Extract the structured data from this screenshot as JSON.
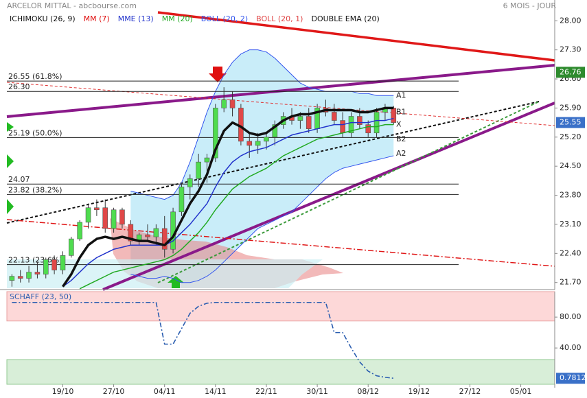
{
  "chart_data": [
    {
      "type": "candlestick",
      "title": "ARCELOR MITTAL - abcbourse.com",
      "period": "6 MOIS - JOUR",
      "xlim": [
        -1,
        64
      ],
      "ylim": [
        21.53,
        28.5
      ],
      "yticks": [
        {
          "value": 28,
          "label": "28.00"
        },
        {
          "value": 27.3,
          "label": "27.30"
        },
        {
          "value": 26.6,
          "label": "26.60"
        },
        {
          "value": 25.9,
          "label": "25.90"
        },
        {
          "value": 25.2,
          "label": "25.20"
        },
        {
          "value": 24.5,
          "label": "24.50"
        },
        {
          "value": 23.8,
          "label": "23.80"
        },
        {
          "value": 23.1,
          "label": "23.10"
        },
        {
          "value": 22.4,
          "label": "22.40"
        },
        {
          "value": 21.7,
          "label": "21.70"
        }
      ],
      "open": [
        21.75,
        21.85,
        21.8,
        21.95,
        21.9,
        22.25,
        22.0,
        22.35,
        22.75,
        23.15,
        23.5,
        23.5,
        23.0,
        23.45,
        23.1,
        22.7,
        22.85,
        22.8,
        23.0,
        22.5,
        23.4,
        24.0,
        24.2,
        24.6,
        24.7,
        25.9,
        26.1,
        25.9,
        25.1,
        25.0,
        25.1,
        25.2,
        25.5,
        25.7,
        25.6,
        25.7,
        25.4,
        25.9,
        25.8,
        25.6,
        25.3,
        25.7,
        25.5,
        25.3,
        25.8,
        25.9
      ],
      "high": [
        21.9,
        22.0,
        22.1,
        22.2,
        22.3,
        22.35,
        22.45,
        22.8,
        23.2,
        23.6,
        23.7,
        23.7,
        23.5,
        23.5,
        23.2,
        22.9,
        23.1,
        23.1,
        23.3,
        23.5,
        24.1,
        24.3,
        24.8,
        24.8,
        26.0,
        26.4,
        26.3,
        26.0,
        25.3,
        25.3,
        25.3,
        25.6,
        25.8,
        25.9,
        25.8,
        25.9,
        26.0,
        26.1,
        26.0,
        25.8,
        25.8,
        25.9,
        25.6,
        25.9,
        26.0,
        25.95
      ],
      "low": [
        21.6,
        21.7,
        21.7,
        21.8,
        21.8,
        21.9,
        21.9,
        22.3,
        22.7,
        23.0,
        23.3,
        22.9,
        22.9,
        23.0,
        22.6,
        22.6,
        22.7,
        22.6,
        22.3,
        22.4,
        23.3,
        23.7,
        24.0,
        24.1,
        24.6,
        25.8,
        25.7,
        25.0,
        24.7,
        24.8,
        24.9,
        25.0,
        25.4,
        25.5,
        25.4,
        25.3,
        25.3,
        25.7,
        25.5,
        25.2,
        25.2,
        25.4,
        25.2,
        25.2,
        25.6,
        25.5
      ],
      "close": [
        21.85,
        21.8,
        21.95,
        21.9,
        22.25,
        22.0,
        22.35,
        22.75,
        23.15,
        23.5,
        23.45,
        23.0,
        23.45,
        23.1,
        22.7,
        22.85,
        22.8,
        23.0,
        22.5,
        23.4,
        24.0,
        24.2,
        24.6,
        24.7,
        25.9,
        26.1,
        25.9,
        25.1,
        25.0,
        25.1,
        25.2,
        25.5,
        25.7,
        25.6,
        25.7,
        25.4,
        25.9,
        25.8,
        25.6,
        25.3,
        25.7,
        25.5,
        25.3,
        25.8,
        25.9,
        25.55
      ],
      "up_color": "#4fdc4f",
      "down_color": "#e04848",
      "indicators": [
        {
          "name": "ICHIMOKU (26, 9)",
          "color": "#111111"
        },
        {
          "name": "MM (7)",
          "color": "#e01010"
        },
        {
          "name": "MME (13)",
          "color": "#2233cc"
        },
        {
          "name": "MM (20)",
          "color": "#22aa22"
        },
        {
          "name": "BOLL (20, 2)",
          "color": "#3355ee"
        },
        {
          "name": "BOLL (20, 1)",
          "color": "#e04444"
        },
        {
          "name": "DOUBLE EMA (20)",
          "color": "#111111"
        }
      ],
      "bands": {
        "indicator": 4,
        "fill": "#c9edf9",
        "upper": [
          null,
          null,
          null,
          null,
          null,
          null,
          null,
          null,
          null,
          null,
          null,
          null,
          null,
          null,
          23.9,
          23.85,
          23.8,
          23.75,
          23.7,
          23.8,
          24.1,
          24.6,
          25.2,
          25.8,
          26.3,
          26.7,
          27.0,
          27.2,
          27.3,
          27.3,
          27.25,
          27.1,
          26.9,
          26.7,
          26.5,
          26.4,
          26.35,
          26.3,
          26.3,
          26.3,
          26.3,
          26.25,
          26.25,
          26.2,
          26.2,
          26.2
        ],
        "lower": [
          null,
          null,
          null,
          null,
          null,
          null,
          null,
          null,
          null,
          null,
          null,
          null,
          null,
          null,
          21.9,
          21.85,
          21.8,
          21.8,
          21.85,
          21.8,
          21.7,
          21.7,
          21.75,
          21.85,
          22.0,
          22.2,
          22.4,
          22.6,
          22.8,
          23.0,
          23.1,
          23.2,
          23.3,
          23.4,
          23.6,
          23.8,
          24.0,
          24.2,
          24.35,
          24.45,
          24.5,
          24.55,
          24.6,
          24.65,
          24.7,
          24.75
        ]
      },
      "series": [
        {
          "indicator": 3,
          "width": 1.5,
          "values": [
            null,
            null,
            null,
            null,
            null,
            null,
            null,
            null,
            21.55,
            21.65,
            21.75,
            21.85,
            21.95,
            22.0,
            22.05,
            22.1,
            22.15,
            22.2,
            22.25,
            22.35,
            22.5,
            22.7,
            22.9,
            23.15,
            23.45,
            23.7,
            23.95,
            24.1,
            24.25,
            24.35,
            24.45,
            24.6,
            24.75,
            24.85,
            24.95,
            25.05,
            25.15,
            25.2,
            25.25,
            25.3,
            25.35,
            25.4,
            25.45,
            25.45,
            25.5,
            25.5
          ]
        },
        {
          "indicator": 2,
          "width": 1.5,
          "values": [
            null,
            null,
            null,
            null,
            null,
            null,
            21.6,
            21.75,
            21.95,
            22.15,
            22.3,
            22.4,
            22.5,
            22.55,
            22.6,
            22.6,
            22.6,
            22.6,
            22.6,
            22.7,
            22.9,
            23.1,
            23.35,
            23.6,
            24.0,
            24.35,
            24.6,
            24.75,
            24.85,
            24.9,
            24.95,
            25.05,
            25.15,
            25.25,
            25.3,
            25.35,
            25.4,
            25.45,
            25.5,
            25.5,
            25.55,
            25.55,
            25.55,
            25.6,
            25.6,
            25.65
          ]
        },
        {
          "indicator": 6,
          "width": 3.5,
          "values": [
            null,
            null,
            null,
            null,
            null,
            null,
            21.6,
            21.9,
            22.3,
            22.6,
            22.75,
            22.8,
            22.75,
            22.8,
            22.75,
            22.7,
            22.7,
            22.65,
            22.6,
            22.8,
            23.2,
            23.6,
            23.9,
            24.3,
            24.9,
            25.35,
            25.55,
            25.45,
            25.3,
            25.25,
            25.3,
            25.45,
            25.6,
            25.7,
            25.75,
            25.75,
            25.8,
            25.85,
            25.85,
            25.85,
            25.85,
            25.8,
            25.8,
            25.85,
            25.9,
            25.9
          ]
        }
      ],
      "fib_levels": [
        {
          "value": 26.55,
          "label": "26.55 (61.8%)"
        },
        {
          "value": 26.3,
          "label": "26.30"
        },
        {
          "value": 25.19,
          "label": "25.19 (50.0%)"
        },
        {
          "value": 24.07,
          "label": "24.07"
        },
        {
          "value": 23.82,
          "label": "23.82 (38.2%)"
        },
        {
          "value": 22.13,
          "label": "22.13 (23.6%)"
        }
      ],
      "annotations": [
        {
          "text": "A1",
          "y": 26.2
        },
        {
          "text": "B1",
          "y": 25.8
        },
        {
          "text": "X",
          "y": 25.5
        },
        {
          "text": "B2",
          "y": 25.15
        },
        {
          "text": "A2",
          "y": 24.8
        }
      ],
      "markers": [
        {
          "value": 26.76,
          "color": "#2e8b2e"
        },
        {
          "value": 25.55,
          "color": "#3a70c8"
        }
      ]
    },
    {
      "type": "line",
      "title": "SCHAFF (23, 50)",
      "xlim": [
        -1,
        64
      ],
      "ylim": [
        -7,
        113
      ],
      "yticks": [
        {
          "value": 80,
          "label": "80.00"
        },
        {
          "value": 40,
          "label": "40.00"
        }
      ],
      "xticks": [
        {
          "value": 6,
          "label": "19/10"
        },
        {
          "value": 12,
          "label": "27/10"
        },
        {
          "value": 18,
          "label": "04/11"
        },
        {
          "value": 24,
          "label": "14/11"
        },
        {
          "value": 30,
          "label": "22/11"
        },
        {
          "value": 36,
          "label": "30/11"
        },
        {
          "value": 42,
          "label": "08/12"
        },
        {
          "value": 48,
          "label": "19/12"
        },
        {
          "value": 54,
          "label": "27/12"
        },
        {
          "value": 60,
          "label": "05/01"
        }
      ],
      "color": "#2a5db0",
      "upper_zone": {
        "from": 75,
        "color": "#fdd8d8"
      },
      "lower_zone": {
        "to": 25,
        "color": "#d8eed8"
      },
      "values": [
        99,
        99,
        99,
        99,
        99,
        99,
        99,
        99,
        99,
        99,
        99,
        99,
        99,
        99,
        99,
        99,
        99,
        99,
        45,
        45,
        65,
        85,
        94,
        98,
        99,
        99,
        99,
        99,
        99,
        99,
        99,
        99,
        99,
        99,
        99,
        99,
        99,
        99,
        60,
        60,
        40,
        22,
        10,
        4,
        2,
        0.7812
      ]
    }
  ]
}
